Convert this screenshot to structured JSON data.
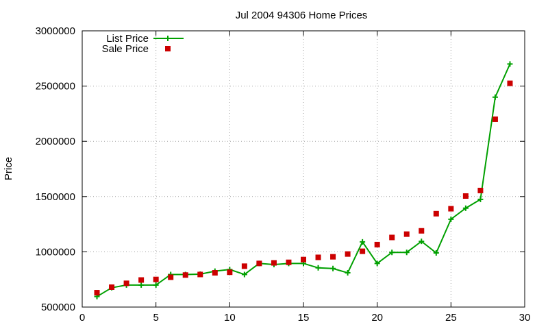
{
  "chart_data": {
    "type": "line",
    "title": "Jul 2004 94306 Home Prices",
    "xlabel": "",
    "ylabel": "Price",
    "xlim": [
      0,
      30
    ],
    "ylim": [
      500000,
      3000000
    ],
    "xticks": [
      0,
      5,
      10,
      15,
      20,
      25,
      30
    ],
    "yticks": [
      500000,
      1000000,
      1500000,
      2000000,
      2500000,
      3000000
    ],
    "grid": true,
    "legend_position": "top-left",
    "series": [
      {
        "name": "List Price",
        "style": "line-with-plus-markers",
        "color": "#00a000",
        "x": [
          1,
          2,
          3,
          4,
          5,
          6,
          7,
          8,
          9,
          10,
          11,
          12,
          13,
          14,
          15,
          16,
          17,
          18,
          19,
          20,
          21,
          22,
          23,
          24,
          25,
          26,
          27,
          28,
          29
        ],
        "values": [
          595000,
          675000,
          699000,
          699000,
          699000,
          795000,
          795000,
          798000,
          825000,
          840000,
          795000,
          895000,
          885000,
          895000,
          895000,
          855000,
          849000,
          810000,
          1090000,
          895000,
          995000,
          995000,
          1095000,
          990000,
          1295000,
          1395000,
          1475000,
          2400000,
          2700000
        ]
      },
      {
        "name": "Sale Price",
        "style": "square-markers",
        "color": "#cc0000",
        "x": [
          1,
          2,
          3,
          4,
          5,
          6,
          7,
          8,
          9,
          10,
          11,
          12,
          13,
          14,
          15,
          16,
          17,
          18,
          19,
          20,
          21,
          22,
          23,
          24,
          25,
          26,
          27,
          28,
          29
        ],
        "values": [
          630000,
          680000,
          715000,
          745000,
          750000,
          770000,
          790000,
          795000,
          810000,
          815000,
          870000,
          895000,
          900000,
          905000,
          930000,
          950000,
          955000,
          980000,
          1005000,
          1065000,
          1130000,
          1160000,
          1190000,
          1345000,
          1390000,
          1505000,
          1555000,
          2200000,
          2525000
        ]
      }
    ]
  }
}
